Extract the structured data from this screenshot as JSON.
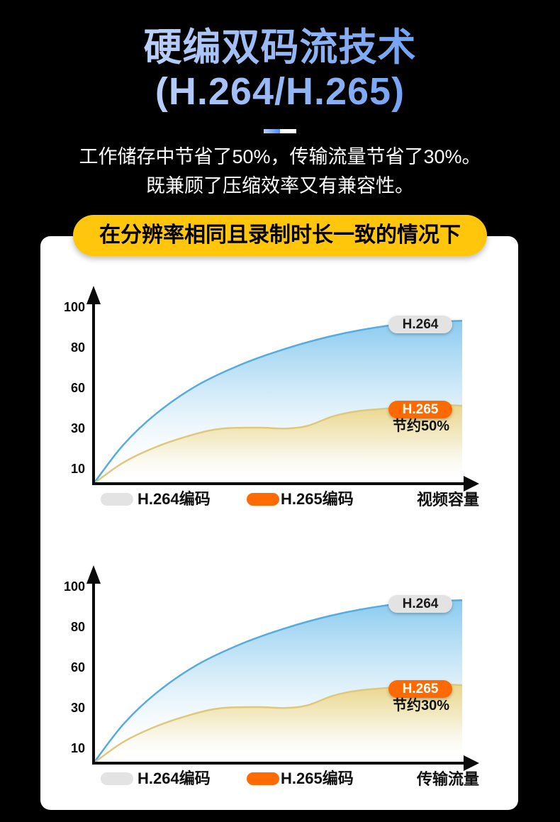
{
  "header": {
    "title_line1": "硬编双码流技术",
    "title_line2": "(H.264/H.265)",
    "subtitle_line1": "工作储存中节省了50%，传输流量节省了30%。",
    "subtitle_line2": "既兼顾了压缩效率又有兼容性。"
  },
  "banner": {
    "text": "在分辨率相同且录制时长一致的情况下"
  },
  "colors": {
    "page_bg": "#000000",
    "panel_bg": "#ffffff",
    "banner_bg": "#ffc60b",
    "banner_text": "#000000",
    "title_gradient_start": "#e8eefc",
    "title_gradient_end": "#4c8bf0",
    "h264_pill_bg": "#e3e3e3",
    "h265_pill_bg": "#ff6b00",
    "blue_line": "#56abdf",
    "blue_fill_top": "#7fc6ee",
    "blue_fill_mid": "#cfe9f8",
    "yellow_line": "#ddc97e",
    "yellow_fill_top": "#ecd483",
    "yellow_fill_mid": "#f4e9bd",
    "axis_color": "#0a0a0a"
  },
  "chart_data": [
    {
      "type": "area",
      "title": "",
      "x_axis_label": "视频容量",
      "y_ticks": [
        100,
        80,
        60,
        30,
        10
      ],
      "ylim": [
        0,
        100
      ],
      "x_range": [
        0,
        1
      ],
      "grid": false,
      "legend_position": "bottom",
      "legend": [
        "H.264编码",
        "H.265编码"
      ],
      "series": [
        {
          "name": "H.264编码",
          "pill_label": "H.264",
          "points": [
            [
              0,
              0
            ],
            [
              0.08,
              22
            ],
            [
              0.17,
              40
            ],
            [
              0.28,
              56
            ],
            [
              0.4,
              68
            ],
            [
              0.52,
              77
            ],
            [
              0.64,
              84
            ],
            [
              0.76,
              89
            ],
            [
              0.88,
              92
            ],
            [
              1,
              93
            ]
          ]
        },
        {
          "name": "H.265编码",
          "pill_label": "H.265",
          "annotation": "节约50%",
          "points": [
            [
              0,
              0
            ],
            [
              0.08,
              12
            ],
            [
              0.17,
              21
            ],
            [
              0.27,
              28
            ],
            [
              0.35,
              31.5
            ],
            [
              0.45,
              32
            ],
            [
              0.52,
              31.5
            ],
            [
              0.58,
              33
            ],
            [
              0.65,
              38.5
            ],
            [
              0.72,
              41.5
            ],
            [
              0.8,
              43
            ],
            [
              0.88,
              44.5
            ],
            [
              0.94,
              45
            ],
            [
              1,
              44.5
            ]
          ]
        }
      ]
    },
    {
      "type": "area",
      "title": "",
      "x_axis_label": "传输流量",
      "y_ticks": [
        100,
        80,
        60,
        30,
        10
      ],
      "ylim": [
        0,
        100
      ],
      "x_range": [
        0,
        1
      ],
      "grid": false,
      "legend_position": "bottom",
      "legend": [
        "H.264编码",
        "H.265编码"
      ],
      "series": [
        {
          "name": "H.264编码",
          "pill_label": "H.264",
          "points": [
            [
              0,
              0
            ],
            [
              0.08,
              22
            ],
            [
              0.17,
              40
            ],
            [
              0.28,
              56
            ],
            [
              0.4,
              68
            ],
            [
              0.52,
              77
            ],
            [
              0.64,
              84
            ],
            [
              0.76,
              89
            ],
            [
              0.88,
              92
            ],
            [
              1,
              93
            ]
          ]
        },
        {
          "name": "H.265编码",
          "pill_label": "H.265",
          "annotation": "节约30%",
          "points": [
            [
              0,
              0
            ],
            [
              0.08,
              12
            ],
            [
              0.17,
              21
            ],
            [
              0.27,
              28
            ],
            [
              0.35,
              31.5
            ],
            [
              0.45,
              32
            ],
            [
              0.52,
              31.5
            ],
            [
              0.58,
              33
            ],
            [
              0.65,
              38.5
            ],
            [
              0.72,
              41.5
            ],
            [
              0.8,
              43
            ],
            [
              0.88,
              44.5
            ],
            [
              0.94,
              45
            ],
            [
              1,
              44.5
            ]
          ]
        }
      ]
    }
  ]
}
